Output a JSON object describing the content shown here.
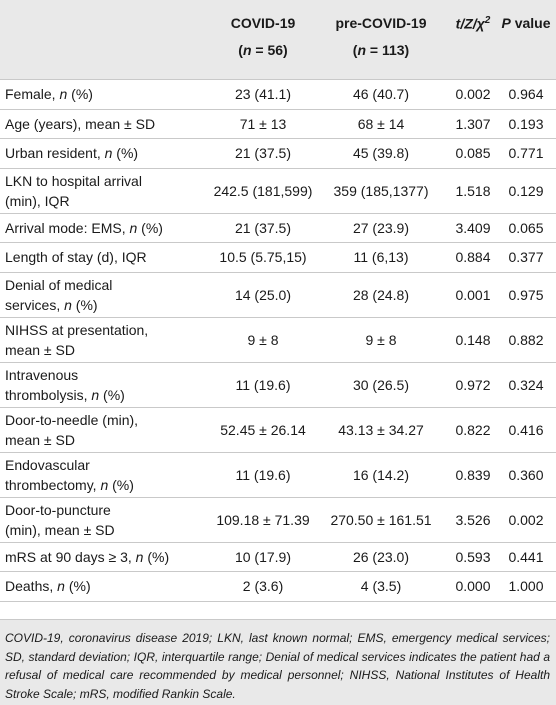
{
  "header": {
    "col1": "COVID-19",
    "col1_n": "(n = 56)",
    "col2": "pre-COVID-19",
    "col2_n": "(n = 113)",
    "col3": "t/Z/χ²",
    "col4": "P value"
  },
  "rows": [
    {
      "label_lines": [
        "Female, n (%)"
      ],
      "covid": "23 (41.1)",
      "pre": "46 (40.7)",
      "stat": "0.002",
      "p": "0.964"
    },
    {
      "label_lines": [
        "Age (years), mean ± SD"
      ],
      "covid": "71 ± 13",
      "pre": "68 ± 14",
      "stat": "1.307",
      "p": "0.193"
    },
    {
      "label_lines": [
        "Urban resident, n (%)"
      ],
      "covid": "21 (37.5)",
      "pre": "45 (39.8)",
      "stat": "0.085",
      "p": "0.771"
    },
    {
      "label_lines": [
        "LKN to hospital arrival",
        "(min), IQR"
      ],
      "covid": "242.5 (181,599)",
      "pre": "359 (185,1377)",
      "stat": "1.518",
      "p": "0.129"
    },
    {
      "label_lines": [
        "Arrival mode: EMS, n (%)"
      ],
      "covid": "21 (37.5)",
      "pre": "27 (23.9)",
      "stat": "3.409",
      "p": "0.065"
    },
    {
      "label_lines": [
        "Length of stay (d), IQR"
      ],
      "covid": "10.5 (5.75,15)",
      "pre": "11 (6,13)",
      "stat": "0.884",
      "p": "0.377"
    },
    {
      "label_lines": [
        "Denial of medical",
        "services, n (%)"
      ],
      "covid": "14 (25.0)",
      "pre": "28 (24.8)",
      "stat": "0.001",
      "p": "0.975"
    },
    {
      "label_lines": [
        "NIHSS at presentation,",
        "mean ± SD"
      ],
      "covid": "9 ± 8",
      "pre": "9 ± 8",
      "stat": "0.148",
      "p": "0.882"
    },
    {
      "label_lines": [
        "Intravenous",
        "thrombolysis, n (%)"
      ],
      "covid": "11 (19.6)",
      "pre": "30 (26.5)",
      "stat": "0.972",
      "p": "0.324"
    },
    {
      "label_lines": [
        "Door-to-needle (min),",
        "mean ± SD"
      ],
      "covid": "52.45 ± 26.14",
      "pre": "43.13 ± 34.27",
      "stat": "0.822",
      "p": "0.416"
    },
    {
      "label_lines": [
        "Endovascular",
        "thrombectomy, n (%)"
      ],
      "covid": "11 (19.6)",
      "pre": "16 (14.2)",
      "stat": "0.839",
      "p": "0.360"
    },
    {
      "label_lines": [
        "Door-to-puncture",
        "(min), mean ± SD"
      ],
      "covid": "109.18 ± 71.39",
      "pre": "270.50 ± 161.51",
      "stat": "3.526",
      "p": "0.002"
    },
    {
      "label_lines": [
        "mRS at 90 days ≥ 3, n (%)"
      ],
      "covid": "10 (17.9)",
      "pre": "26 (23.0)",
      "stat": "0.593",
      "p": "0.441"
    },
    {
      "label_lines": [
        "Deaths, n (%)"
      ],
      "covid": "2 (3.6)",
      "pre": "4 (3.5)",
      "stat": "0.000",
      "p": "1.000"
    }
  ],
  "footnote": "COVID-19, coronavirus disease 2019; LKN, last known normal; EMS, emergency medical services; SD, standard deviation; IQR, interquartile range; Denial of medical services indicates the patient had a refusal of medical care recommended by medical personnel; NIHSS, National Institutes of Health Stroke Scale; mRS, modified Rankin Scale."
}
